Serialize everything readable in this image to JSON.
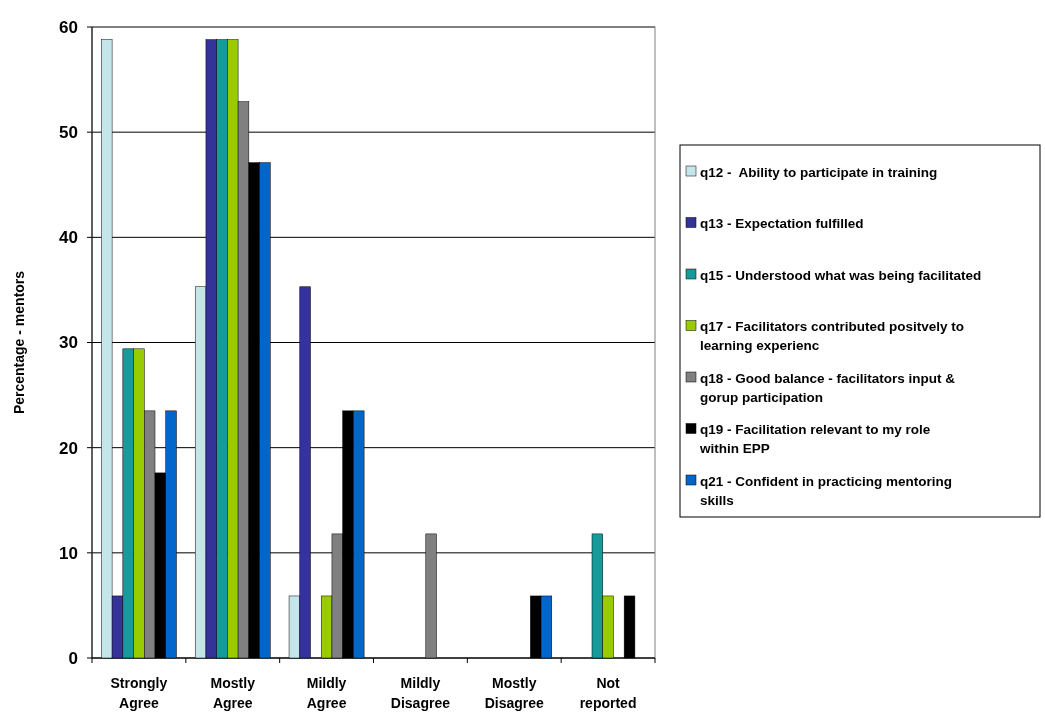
{
  "chart_data": {
    "type": "bar",
    "ylabel": "Percentage - mentors",
    "categories": [
      "Strongly Agree",
      "Mostly Agree",
      "Mildly Agree",
      "Mildly Disagree",
      "Mostly Disagree",
      "Not reported"
    ],
    "ylim": [
      0,
      60
    ],
    "yticks": [
      0,
      10,
      20,
      30,
      40,
      50,
      60
    ],
    "grid": "y",
    "legend": "right",
    "series": [
      {
        "name": "q12 -  Ability to participate in training",
        "color": "#c4e6ea",
        "values": [
          58.8,
          35.3,
          5.9,
          0,
          0,
          0
        ]
      },
      {
        "name": "q13 - Expectation fulfilled",
        "color": "#333399",
        "values": [
          5.9,
          58.8,
          35.3,
          0,
          0,
          0
        ]
      },
      {
        "name": "q15 - Understood what was being facilitated",
        "color": "#169a9a",
        "values": [
          29.4,
          58.8,
          0,
          0,
          0,
          11.8
        ]
      },
      {
        "name": "q17 - Facilitators contributed positvely to learning experienc",
        "color": "#99cc00",
        "values": [
          29.4,
          58.8,
          5.9,
          0,
          0,
          5.9
        ]
      },
      {
        "name": "q18 - Good balance - facilitators input & gorup participation",
        "color": "#808080",
        "values": [
          23.5,
          52.9,
          11.8,
          11.8,
          0,
          0
        ]
      },
      {
        "name": "q19 - Facilitation relevant to my role within EPP",
        "color": "#000000",
        "values": [
          17.6,
          47.1,
          23.5,
          0,
          5.9,
          5.9
        ]
      },
      {
        "name": "q21 - Confident in practicing mentoring skills",
        "color": "#0066cc",
        "values": [
          23.5,
          47.1,
          23.5,
          0,
          5.9,
          0
        ]
      }
    ]
  }
}
